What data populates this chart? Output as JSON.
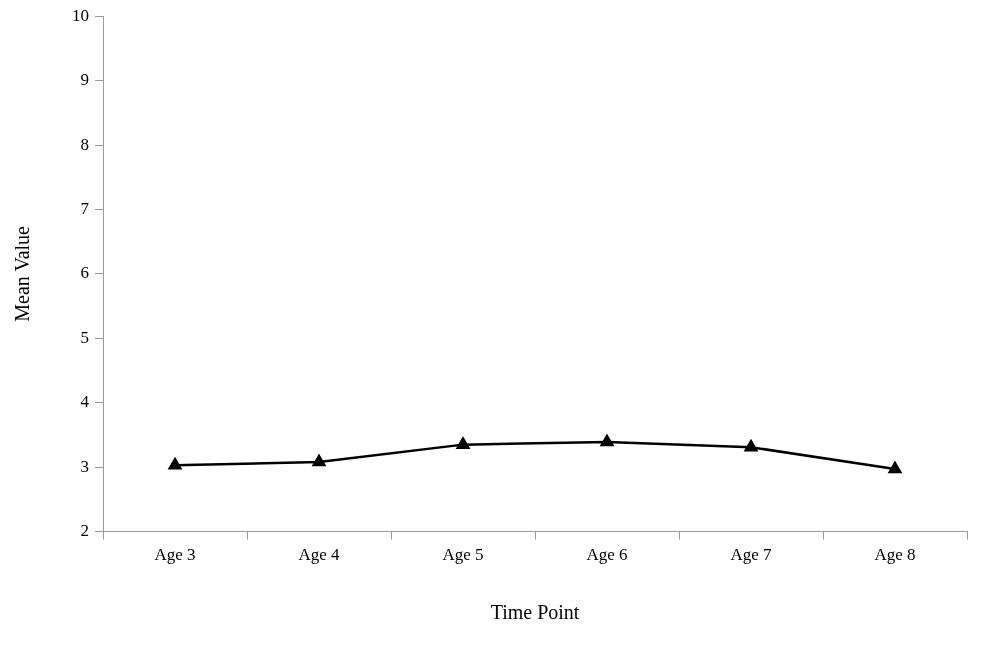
{
  "chart_data": {
    "type": "line",
    "xlabel": "Time Point",
    "ylabel": "Mean Value",
    "categories": [
      "Age 3",
      "Age 4",
      "Age 5",
      "Age 6",
      "Age 7",
      "Age 8"
    ],
    "series": [
      {
        "color": "#000000",
        "values": [
          3.03,
          3.08,
          3.35,
          3.39,
          3.31,
          2.97
        ]
      }
    ],
    "ylim": [
      2,
      10
    ],
    "yticks": [
      2,
      3,
      4,
      5,
      6,
      7,
      8,
      9,
      10
    ],
    "grid": false,
    "legend": false,
    "marker": "triangle",
    "line_style": "solid"
  }
}
